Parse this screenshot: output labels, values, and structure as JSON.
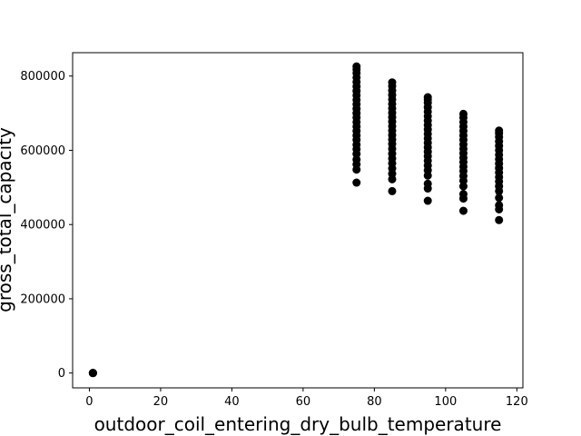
{
  "chart_data": {
    "type": "scatter",
    "title": "",
    "xlabel": "outdoor_coil_entering_dry_bulb_temperature",
    "ylabel": "gross_total_capacity",
    "xlim": [
      -4.7,
      121.7
    ],
    "ylim": [
      -40000,
      863000
    ],
    "xticks": [
      0,
      20,
      40,
      60,
      80,
      100,
      120
    ],
    "yticks": [
      0,
      200000,
      400000,
      600000,
      800000
    ],
    "xtick_labels": [
      "0",
      "20",
      "40",
      "60",
      "80",
      "100",
      "120"
    ],
    "ytick_labels": [
      "0",
      "200000",
      "400000",
      "600000",
      "800000"
    ],
    "grid": false,
    "marker_color": "#000000",
    "series": [
      {
        "points": [
          [
            1,
            0
          ],
          [
            1,
            0
          ],
          [
            1,
            0
          ],
          [
            1,
            0
          ],
          [
            1,
            0
          ],
          [
            75,
            513000
          ],
          [
            75,
            548000
          ],
          [
            75,
            562000
          ],
          [
            75,
            575000
          ],
          [
            75,
            590000
          ],
          [
            75,
            603000
          ],
          [
            75,
            615000
          ],
          [
            75,
            628000
          ],
          [
            75,
            640000
          ],
          [
            75,
            652000
          ],
          [
            75,
            664000
          ],
          [
            75,
            676000
          ],
          [
            75,
            688000
          ],
          [
            75,
            700000
          ],
          [
            75,
            712000
          ],
          [
            75,
            724000
          ],
          [
            75,
            736000
          ],
          [
            75,
            748000
          ],
          [
            75,
            760000
          ],
          [
            75,
            772000
          ],
          [
            75,
            784000
          ],
          [
            75,
            796000
          ],
          [
            75,
            808000
          ],
          [
            75,
            818000
          ],
          [
            75,
            826000
          ],
          [
            85,
            490000
          ],
          [
            85,
            522000
          ],
          [
            85,
            537000
          ],
          [
            85,
            551000
          ],
          [
            85,
            565000
          ],
          [
            85,
            578000
          ],
          [
            85,
            591000
          ],
          [
            85,
            604000
          ],
          [
            85,
            617000
          ],
          [
            85,
            629000
          ],
          [
            85,
            641000
          ],
          [
            85,
            653000
          ],
          [
            85,
            665000
          ],
          [
            85,
            677000
          ],
          [
            85,
            689000
          ],
          [
            85,
            701000
          ],
          [
            85,
            713000
          ],
          [
            85,
            725000
          ],
          [
            85,
            737000
          ],
          [
            85,
            749000
          ],
          [
            85,
            761000
          ],
          [
            85,
            773000
          ],
          [
            85,
            783000
          ],
          [
            95,
            464000
          ],
          [
            95,
            497000
          ],
          [
            95,
            510000
          ],
          [
            95,
            532000
          ],
          [
            95,
            546000
          ],
          [
            95,
            559000
          ],
          [
            95,
            572000
          ],
          [
            95,
            584000
          ],
          [
            95,
            596000
          ],
          [
            95,
            608000
          ],
          [
            95,
            620000
          ],
          [
            95,
            632000
          ],
          [
            95,
            644000
          ],
          [
            95,
            656000
          ],
          [
            95,
            668000
          ],
          [
            95,
            680000
          ],
          [
            95,
            692000
          ],
          [
            95,
            704000
          ],
          [
            95,
            716000
          ],
          [
            95,
            728000
          ],
          [
            95,
            737000
          ],
          [
            95,
            743000
          ],
          [
            105,
            437000
          ],
          [
            105,
            470000
          ],
          [
            105,
            482000
          ],
          [
            105,
            503000
          ],
          [
            105,
            518000
          ],
          [
            105,
            531000
          ],
          [
            105,
            544000
          ],
          [
            105,
            556000
          ],
          [
            105,
            568000
          ],
          [
            105,
            580000
          ],
          [
            105,
            592000
          ],
          [
            105,
            604000
          ],
          [
            105,
            616000
          ],
          [
            105,
            628000
          ],
          [
            105,
            640000
          ],
          [
            105,
            652000
          ],
          [
            105,
            664000
          ],
          [
            105,
            676000
          ],
          [
            105,
            688000
          ],
          [
            105,
            698000
          ],
          [
            115,
            412000
          ],
          [
            115,
            441000
          ],
          [
            115,
            452000
          ],
          [
            115,
            472000
          ],
          [
            115,
            490000
          ],
          [
            115,
            503000
          ],
          [
            115,
            516000
          ],
          [
            115,
            528000
          ],
          [
            115,
            540000
          ],
          [
            115,
            552000
          ],
          [
            115,
            564000
          ],
          [
            115,
            576000
          ],
          [
            115,
            588000
          ],
          [
            115,
            600000
          ],
          [
            115,
            612000
          ],
          [
            115,
            624000
          ],
          [
            115,
            636000
          ],
          [
            115,
            646000
          ],
          [
            115,
            653000
          ]
        ]
      }
    ]
  }
}
